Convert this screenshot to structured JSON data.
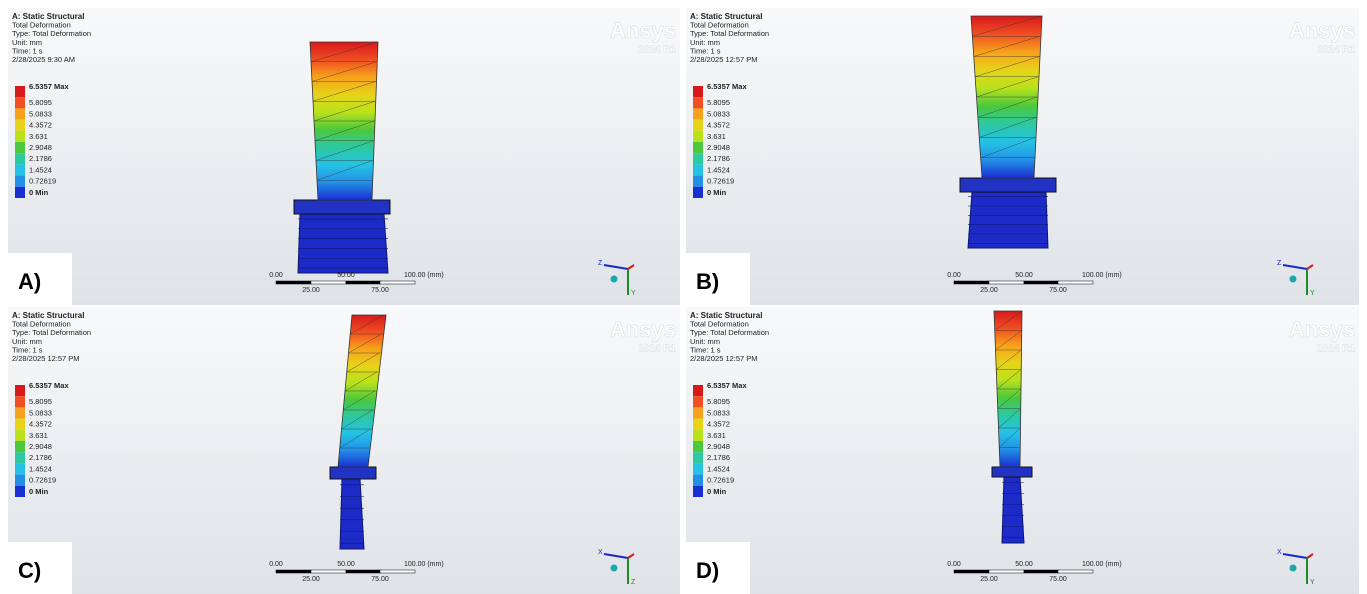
{
  "panels": [
    {
      "label": "A)",
      "header": [
        "A: Static Structural",
        "Total Deformation",
        "Type: Total Deformation",
        "Unit: mm",
        "Time: 1 s",
        "2/28/2025 9:30 AM"
      ],
      "legend": [
        "6.5357 Max",
        "5.8095",
        "5.0833",
        "4.3572",
        "3.631",
        "2.9048",
        "2.1786",
        "1.4524",
        "0.72619",
        "0 Min"
      ],
      "logo": {
        "name": "Ansys",
        "version": "2024 R1"
      },
      "scale": {
        "top": [
          "0.00",
          "50.00",
          "100.00 (mm)"
        ],
        "bottom": [
          "25.00",
          "75.00"
        ]
      },
      "triad": [
        "Z",
        "Y"
      ]
    },
    {
      "label": "B)",
      "header": [
        "A: Static Structural",
        "Total Deformation",
        "Type: Total Deformation",
        "Unit: mm",
        "Time: 1 s",
        "2/28/2025 12:57 PM"
      ],
      "legend": [
        "6.5357 Max",
        "5.8095",
        "5.0833",
        "4.3572",
        "3.631",
        "2.9048",
        "2.1786",
        "1.4524",
        "0.72619",
        "0 Min"
      ],
      "logo": {
        "name": "Ansys",
        "version": "2024 R1"
      },
      "scale": {
        "top": [
          "0.00",
          "50.00",
          "100.00 (mm)"
        ],
        "bottom": [
          "25.00",
          "75.00"
        ]
      },
      "triad": [
        "Z",
        "Y"
      ]
    },
    {
      "label": "C)",
      "header": [
        "A: Static Structural",
        "Total Deformation",
        "Type: Total Deformation",
        "Unit: mm",
        "Time: 1 s",
        "2/28/2025 12:57 PM"
      ],
      "legend": [
        "6.5357 Max",
        "5.8095",
        "5.0833",
        "4.3572",
        "3.631",
        "2.9048",
        "2.1786",
        "1.4524",
        "0.72619",
        "0 Min"
      ],
      "logo": {
        "name": "Ansys",
        "version": "2024 R1"
      },
      "scale": {
        "top": [
          "0.00",
          "50.00",
          "100.00 (mm)"
        ],
        "bottom": [
          "25.00",
          "75.00"
        ]
      },
      "triad": [
        "X",
        "Z"
      ]
    },
    {
      "label": "D)",
      "header": [
        "A: Static Structural",
        "Total Deformation",
        "Type: Total Deformation",
        "Unit: mm",
        "Time: 1 s",
        "2/28/2025 12:57 PM"
      ],
      "legend": [
        "6.5357 Max",
        "5.8095",
        "5.0833",
        "4.3572",
        "3.631",
        "2.9048",
        "2.1786",
        "1.4524",
        "0.72619",
        "0 Min"
      ],
      "logo": {
        "name": "Ansys",
        "version": "2024 R1"
      },
      "scale": {
        "top": [
          "0.00",
          "50.00",
          "100.00 (mm)"
        ],
        "bottom": [
          "25.00",
          "75.00"
        ]
      },
      "triad": [
        "X",
        "Y"
      ]
    }
  ]
}
